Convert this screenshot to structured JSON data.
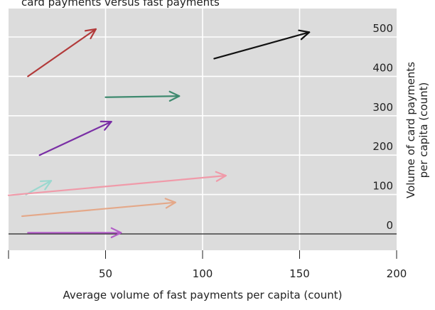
{
  "chart_data": {
    "type": "line",
    "title": "",
    "top_caption": "card payments versus fast payments",
    "xlabel": "Average volume of fast payments per capita (count)",
    "ylabel": "Volume of card payments per capita (count)",
    "ylabel_lines": [
      "Volume of card payments",
      "per capita (count)"
    ],
    "xlim": [
      0,
      200
    ],
    "ylim": [
      -20,
      540
    ],
    "x_ticks": [
      0,
      50,
      100,
      150,
      200
    ],
    "x_tick_labels": [
      "",
      "50",
      "100",
      "150",
      "200"
    ],
    "y_ticks": [
      0,
      100,
      200,
      300,
      400,
      500
    ],
    "y_tick_labels": [
      "0",
      "100",
      "200",
      "300",
      "400",
      "500"
    ],
    "y_axis_side": "right",
    "grid": true,
    "background": "#dcdcdc",
    "zero_line": true,
    "series": [
      {
        "color": "#b23a3a",
        "x": [
          10,
          45
        ],
        "y": [
          400,
          520
        ]
      },
      {
        "color": "#111111",
        "x": [
          106,
          155
        ],
        "y": [
          445,
          512
        ]
      },
      {
        "color": "#3f8a6f",
        "x": [
          50,
          88
        ],
        "y": [
          347,
          350
        ]
      },
      {
        "color": "#7a2fa5",
        "x": [
          16,
          53
        ],
        "y": [
          200,
          285
        ]
      },
      {
        "color": "#9bd8cf",
        "x": [
          9,
          22
        ],
        "y": [
          100,
          135
        ]
      },
      {
        "color": "#f09aa9",
        "x": [
          0,
          112
        ],
        "y": [
          98,
          148
        ]
      },
      {
        "color": "#e4a889",
        "x": [
          7,
          86
        ],
        "y": [
          45,
          80
        ]
      },
      {
        "color": "#b25ec7",
        "x": [
          10,
          58
        ],
        "y": [
          3,
          3
        ]
      }
    ]
  }
}
